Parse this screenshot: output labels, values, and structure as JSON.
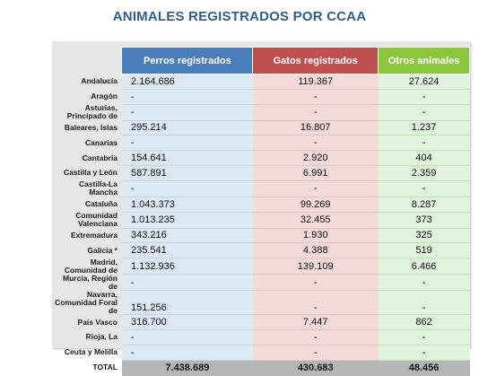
{
  "title": "ANIMALES REGISTRADOS POR CCAA",
  "headers": [
    "Perros registrados",
    "Gatos registrados",
    "Otros animales"
  ],
  "colors": {
    "perros": "#4a7ebb",
    "gatos": "#c0504d",
    "otros": "#8cc63f",
    "title": "#2f5d8f"
  },
  "rows": [
    {
      "region": "Andalucía",
      "perros": "2.164.686",
      "gatos": "119.367",
      "otros": "27.624"
    },
    {
      "region": "Aragón",
      "perros": "-",
      "gatos": "-",
      "otros": "-"
    },
    {
      "region": "Asturias, Principado de",
      "perros": "-",
      "gatos": "-",
      "otros": "-"
    },
    {
      "region": "Baleares, Islas",
      "perros": "295.214",
      "gatos": "16.807",
      "otros": "1.237"
    },
    {
      "region": "Canarias",
      "perros": "-",
      "gatos": "-",
      "otros": "-"
    },
    {
      "region": "Cantabria",
      "perros": "154.641",
      "gatos": "2.920",
      "otros": "404"
    },
    {
      "region": "Castilla y León",
      "perros": "587.891",
      "gatos": "6.991",
      "otros": "2.359"
    },
    {
      "region": "Castilla-La Mancha",
      "perros": "-",
      "gatos": "-",
      "otros": "-"
    },
    {
      "region": "Cataluña",
      "perros": "1.043.373",
      "gatos": "99.269",
      "otros": "8.287"
    },
    {
      "region": "Comunidad Valenciana",
      "perros": "1.013.235",
      "gatos": "32.455",
      "otros": "373"
    },
    {
      "region": "Extremadura",
      "perros": "343.216",
      "gatos": "1.930",
      "otros": "325"
    },
    {
      "region": "Galicia *",
      "perros": "235.541",
      "gatos": "4.388",
      "otros": "519"
    },
    {
      "region": "Madrid, Comunidad de",
      "perros": "1.132.936",
      "gatos": "139.109",
      "otros": "6.466"
    },
    {
      "region": "Murcia, Región de",
      "perros": "-",
      "gatos": "-",
      "otros": "-"
    },
    {
      "region": "Navarra, Comunidad Foral de",
      "perros": "151.256",
      "gatos": "-",
      "otros": "-",
      "tall": true
    },
    {
      "region": "País Vasco",
      "perros": "316.700",
      "gatos": "7.447",
      "otros": "862"
    },
    {
      "region": "Rioja, La",
      "perros": "-",
      "gatos": "-",
      "otros": "-"
    },
    {
      "region": "Ceuta y Melilla",
      "perros": "-",
      "gatos": "-",
      "otros": "-"
    }
  ],
  "total": {
    "label": "TOTAL",
    "perros": "7.438.689",
    "gatos": "430.683",
    "otros": "48.456"
  }
}
